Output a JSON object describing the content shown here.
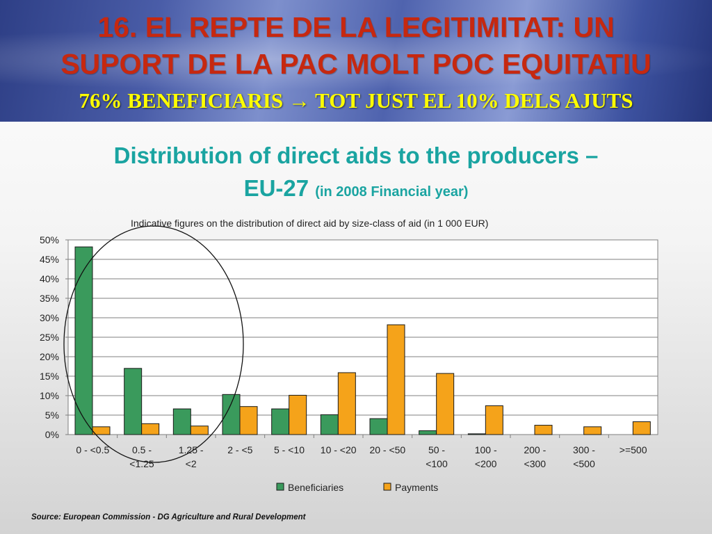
{
  "slide": {
    "title_line1": "16. EL REPTE DE LA LEGITIMITAT: UN",
    "title_line2": "SUPORT DE LA PAC MOLT POC EQUITATIU",
    "subtitle": "76% BENEFICIARIS → TOT JUST EL 10% DELS AJUTS"
  },
  "figure": {
    "title_line1": "Distribution of direct aids to the producers –",
    "title_line2_main": "EU-27",
    "title_line2_small": "(in 2008 Financial year)",
    "source": "Source: European Commission - DG Agriculture and Rural Development"
  },
  "chart_data": {
    "type": "bar",
    "title": "Indicative figures on the distribution of direct aid by size-class of aid (in 1 000 EUR)",
    "xlabel": "",
    "ylabel": "",
    "ylim": [
      0,
      50
    ],
    "yticks": [
      "0%",
      "5%",
      "10%",
      "15%",
      "20%",
      "25%",
      "30%",
      "35%",
      "40%",
      "45%",
      "50%"
    ],
    "grid": true,
    "legend_position": "bottom",
    "categories": [
      [
        "0 - <0.5"
      ],
      [
        "0.5 -",
        "<1.25"
      ],
      [
        "1.25 -",
        "<2"
      ],
      [
        "2 - <5"
      ],
      [
        "5 - <10"
      ],
      [
        "10 - <20"
      ],
      [
        "20 - <50"
      ],
      [
        "50 -",
        "<100"
      ],
      [
        "100 -",
        "<200"
      ],
      [
        "200 -",
        "<300"
      ],
      [
        "300 -",
        "<500"
      ],
      [
        ">=500"
      ]
    ],
    "series": [
      {
        "name": "Beneficiaries",
        "color": "#3a9a5c",
        "values": [
          48.2,
          17.0,
          6.6,
          10.3,
          6.6,
          5.1,
          4.1,
          1.0,
          0.2,
          0.0,
          0.0,
          0.0
        ]
      },
      {
        "name": "Payments",
        "color": "#f5a31a",
        "values": [
          2.0,
          2.8,
          2.2,
          7.2,
          10.1,
          15.9,
          28.2,
          15.7,
          7.4,
          2.4,
          2.0,
          3.3
        ]
      }
    ],
    "annotation": "hand-drawn ellipse circling the three smallest size classes"
  }
}
